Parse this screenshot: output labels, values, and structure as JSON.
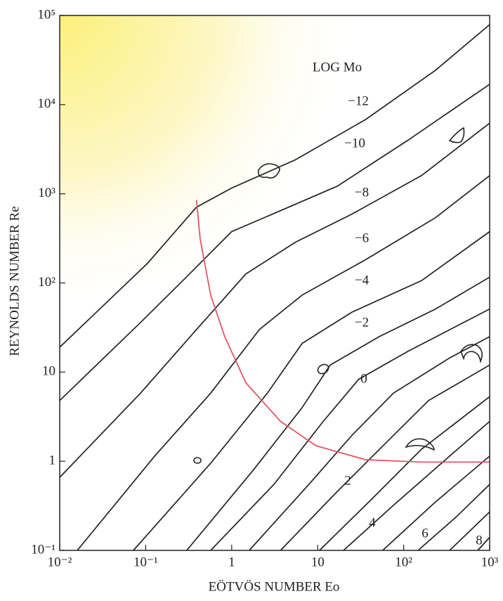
{
  "chart_data": {
    "type": "line",
    "x_label": "EÖTVÖS NUMBER Eo",
    "y_label": "REYNOLDS NUMBER Re",
    "contour_title": "LOG Mo",
    "xscale": "log",
    "yscale": "log",
    "xlim": [
      0.01,
      1000
    ],
    "ylim": [
      0.1,
      100000
    ],
    "xticks": [
      {
        "value": 0.01,
        "label": "10⁻²"
      },
      {
        "value": 0.1,
        "label": "10⁻¹"
      },
      1,
      10,
      {
        "value": 100,
        "label": "10²"
      },
      {
        "value": 1000,
        "label": "10³"
      }
    ],
    "yticks": [
      {
        "value": 0.1,
        "label": "10⁻¹"
      },
      1,
      10,
      {
        "value": 100,
        "label": "10²"
      },
      {
        "value": 1000,
        "label": "10³"
      },
      {
        "value": 10000,
        "label": "10⁴"
      },
      {
        "value": 100000,
        "label": "10⁵"
      }
    ],
    "series": [
      {
        "name": "−12",
        "color": "#222222",
        "x": [
          0.01,
          0.105,
          0.39,
          1.0,
          5.5,
          36,
          235,
          1000
        ],
        "values": [
          19,
          166,
          708,
          1160,
          2400,
          6800,
          24300,
          79000
        ]
      },
      {
        "name": "−10",
        "color": "#222222",
        "x": [
          0.01,
          0.087,
          0.27,
          1.0,
          3.7,
          17,
          111,
          1000
        ],
        "values": [
          4.8,
          36,
          106,
          376,
          647,
          1220,
          3960,
          16900
        ]
      },
      {
        "name": "−8",
        "color": "#222222",
        "x": [
          0.01,
          0.087,
          0.39,
          1.46,
          5.5,
          25,
          161,
          1000
        ],
        "values": [
          0.66,
          5.8,
          30,
          126,
          286,
          591,
          1600,
          6200
        ]
      },
      {
        "name": "−6",
        "color": "#222222",
        "x": [
          0.016,
          0.127,
          0.57,
          2.1,
          6.6,
          36,
          235,
          1000
        ],
        "values": [
          0.1,
          1.14,
          5.8,
          30,
          73,
          182,
          540,
          1600
        ]
      },
      {
        "name": "−4",
        "color": "#222222",
        "x": [
          0.072,
          0.57,
          2.6,
          6.6,
          25,
          161,
          1000
        ],
        "values": [
          0.1,
          0.95,
          5.8,
          21,
          47,
          106,
          376
        ]
      },
      {
        "name": "−2",
        "color": "#222222",
        "x": [
          0.3,
          1.77,
          6.6,
          14,
          52,
          235,
          1000
        ],
        "values": [
          0.1,
          0.79,
          4.0,
          12,
          25,
          51,
          116
        ]
      },
      {
        "name": "0",
        "color": "#222222",
        "x": [
          0.57,
          3.1,
          11.6,
          30,
          111,
          1000
        ],
        "values": [
          0.1,
          0.55,
          2.8,
          8.3,
          17,
          51
        ]
      },
      {
        "color": "#222222",
        "x": [
          1.6,
          7.9,
          25,
          76,
          342,
          1000
        ],
        "values": [
          0.1,
          0.55,
          1.95,
          5.8,
          14.4,
          25
        ]
      },
      {
        "name": "2",
        "color": "#222222",
        "x": [
          3.7,
          17,
          63,
          195,
          1000
        ],
        "values": [
          0.1,
          0.46,
          1.63,
          4.8,
          12
        ]
      },
      {
        "color": "#222222",
        "x": [
          10.5,
          43,
          161,
          1000
        ],
        "values": [
          0.1,
          0.38,
          1.36,
          5.3
        ]
      },
      {
        "name": "4",
        "color": "#222222",
        "x": [
          20,
          76,
          342,
          1000
        ],
        "values": [
          0.1,
          0.32,
          1.14,
          2.8
        ]
      },
      {
        "color": "#222222",
        "x": [
          57,
          235,
          1000
        ],
        "values": [
          0.1,
          0.35,
          1.14
        ]
      },
      {
        "name": "6",
        "color": "#222222",
        "x": [
          147,
          413,
          1000
        ],
        "values": [
          0.1,
          0.24,
          0.55
        ]
      },
      {
        "color": "#222222",
        "x": [
          342,
          1000
        ],
        "values": [
          0.1,
          0.27
        ]
      },
      {
        "name": "8",
        "color": "#222222",
        "x": [
          726,
          1000
        ],
        "values": [
          0.1,
          0.14
        ]
      },
      {
        "color": "#e05060",
        "x": [
          0.39,
          0.43,
          0.57,
          0.83,
          1.46,
          3.7,
          9.6,
          36,
          161,
          1000
        ],
        "values": [
          850,
          313,
          73,
          25,
          7.6,
          2.8,
          1.49,
          1.04,
          0.98,
          0.98
        ]
      }
    ]
  }
}
